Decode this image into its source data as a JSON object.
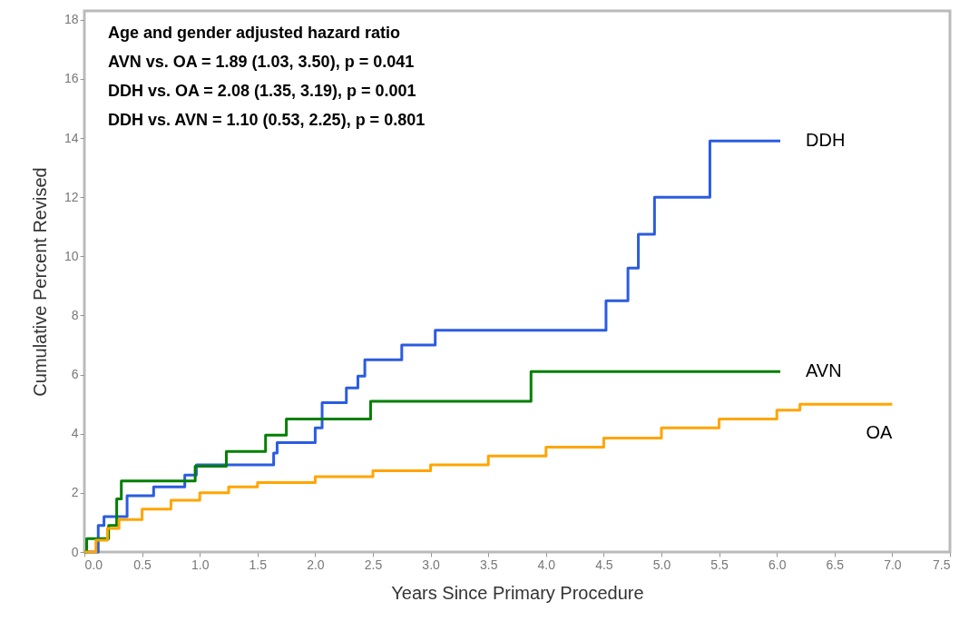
{
  "chart_data": {
    "type": "step",
    "xlabel": "Years Since Primary Procedure",
    "ylabel": "Cumulative Percent Revised",
    "xlim": [
      0,
      7.5
    ],
    "xticks": [
      {
        "value": 0,
        "label": "0.0"
      },
      0.5,
      {
        "value": 1,
        "label": "1.0"
      },
      1.5,
      {
        "value": 2,
        "label": "2.0"
      },
      2.5,
      {
        "value": 3,
        "label": "3.0"
      },
      3.5,
      {
        "value": 4,
        "label": "4.0"
      },
      4.5,
      {
        "value": 5,
        "label": "5.0"
      },
      5.5,
      {
        "value": 6,
        "label": "6.0"
      },
      6.5,
      {
        "value": 7,
        "label": "7.0"
      },
      7.5
    ],
    "ylim": [
      0,
      18.3
    ],
    "yticks": [
      0,
      2,
      4,
      6,
      8,
      10,
      12,
      14,
      16,
      18
    ],
    "grid": false,
    "marker": "none",
    "line_style": "solid",
    "annotations": [
      "Age and gender adjusted hazard ratio",
      "AVN vs. OA = 1.89 (1.03, 3.50), p = 0.041",
      "DDH vs. OA = 2.08 (1.35, 3.19), p = 0.001",
      "DDH vs. AVN = 1.10 (0.53, 2.25), p = 0.801"
    ],
    "series": [
      {
        "name": "DDH",
        "color": "#2b5ce0",
        "x": [
          0,
          0.12,
          0.17,
          0.37,
          0.6,
          0.87,
          0.97,
          1.64,
          1.67,
          2.0,
          2.06,
          2.27,
          2.37,
          2.43,
          2.75,
          3.04,
          4.52,
          4.71,
          4.8,
          4.94,
          5.42,
          6.03
        ],
        "values": [
          0,
          0.9,
          1.2,
          1.9,
          2.2,
          2.6,
          2.95,
          3.35,
          3.7,
          4.2,
          5.05,
          5.55,
          5.95,
          6.5,
          7.0,
          7.5,
          8.5,
          9.6,
          10.75,
          12.0,
          13.9,
          13.9
        ]
      },
      {
        "name": "AVN",
        "color": "#008000",
        "x": [
          0,
          0.02,
          0.21,
          0.28,
          0.32,
          0.96,
          1.23,
          1.57,
          1.75,
          2.48,
          3.87,
          6.03
        ],
        "values": [
          0,
          0.45,
          0.9,
          1.8,
          2.4,
          2.9,
          3.4,
          3.95,
          4.5,
          5.1,
          6.1,
          6.1
        ]
      },
      {
        "name": "OA",
        "color": "#ffa500",
        "x": [
          0,
          0.1,
          0.2,
          0.3,
          0.5,
          0.75,
          1.0,
          1.25,
          1.5,
          2.0,
          2.5,
          3.0,
          3.5,
          4.0,
          4.5,
          5.0,
          5.5,
          6.0,
          6.2,
          7.0
        ],
        "values": [
          0,
          0.4,
          0.8,
          1.1,
          1.45,
          1.75,
          2.0,
          2.2,
          2.35,
          2.55,
          2.75,
          2.95,
          3.25,
          3.55,
          3.85,
          4.2,
          4.5,
          4.8,
          5.0,
          5.0
        ]
      }
    ]
  }
}
